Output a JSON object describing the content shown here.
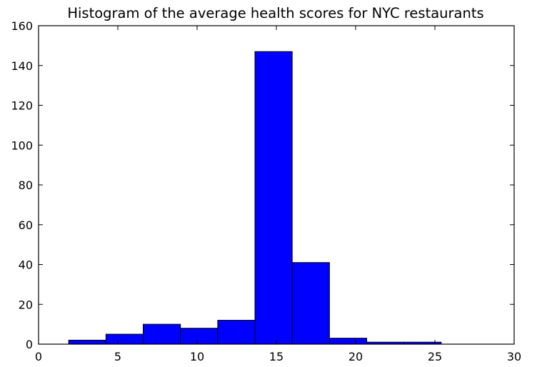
{
  "chart_data": {
    "type": "bar",
    "subtype": "histogram",
    "title": "Histogram of the average health scores for NYC restaurants",
    "xlabel": "",
    "ylabel": "",
    "xlim": [
      0,
      30
    ],
    "ylim": [
      0,
      160
    ],
    "xticks": [
      0,
      5,
      10,
      15,
      20,
      25,
      30
    ],
    "yticks": [
      0,
      20,
      40,
      60,
      80,
      100,
      120,
      140,
      160
    ],
    "bins": [
      {
        "x0": 1.9,
        "x1": 4.25,
        "count": 2
      },
      {
        "x0": 4.25,
        "x1": 6.6,
        "count": 5
      },
      {
        "x0": 6.6,
        "x1": 8.95,
        "count": 10
      },
      {
        "x0": 8.95,
        "x1": 11.3,
        "count": 8
      },
      {
        "x0": 11.3,
        "x1": 13.65,
        "count": 12
      },
      {
        "x0": 13.65,
        "x1": 16.0,
        "count": 147
      },
      {
        "x0": 16.0,
        "x1": 18.35,
        "count": 41
      },
      {
        "x0": 18.35,
        "x1": 20.7,
        "count": 3
      },
      {
        "x0": 20.7,
        "x1": 23.05,
        "count": 1
      },
      {
        "x0": 23.05,
        "x1": 25.4,
        "count": 1
      }
    ],
    "grid": false,
    "legend": "none",
    "bar_color": "#0000ff",
    "edge_color": "#000000"
  }
}
